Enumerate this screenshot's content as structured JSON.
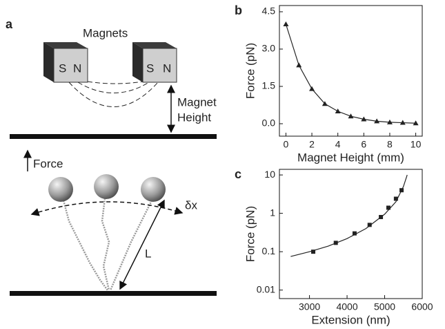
{
  "panel_a": {
    "label": "a",
    "magnets": "Magnets",
    "poles": [
      "S",
      "N",
      "S",
      "N"
    ],
    "magnet_height": [
      "Magnet",
      "Height"
    ],
    "force": "Force",
    "delta_x": "δx",
    "length": "L"
  },
  "chart_data": [
    {
      "type": "line",
      "panel": "b",
      "xlabel": "Magnet Height (mm)",
      "ylabel": "Force (pN)",
      "x": [
        0,
        1,
        2,
        3,
        4,
        5,
        6,
        7,
        8,
        9,
        10
      ],
      "series": [
        {
          "color": "#222222",
          "marker": "triangle",
          "line": true,
          "values": [
            4.0,
            2.35,
            1.4,
            0.8,
            0.5,
            0.3,
            0.18,
            0.1,
            0.06,
            0.04,
            0.02
          ]
        }
      ],
      "xlim": [
        -0.5,
        10.5
      ],
      "xticks": [
        0,
        2,
        4,
        6,
        8,
        10
      ],
      "ylim": [
        -0.5,
        4.75
      ],
      "yticks": [
        {
          "value": 0,
          "label": "0.0"
        },
        1.5,
        {
          "value": 3,
          "label": "3.0"
        },
        4.5
      ]
    },
    {
      "type": "scatter",
      "panel": "c",
      "xlabel": "Extension (nm)",
      "ylabel": "Force (pN)",
      "log_y": true,
      "series": [
        {
          "color": "#222222",
          "marker": "square",
          "line": false,
          "x": [
            3100,
            3700,
            4200,
            4600,
            4900,
            5100,
            5300,
            5450
          ],
          "values": [
            0.1,
            0.17,
            0.3,
            0.5,
            0.8,
            1.4,
            2.4,
            4
          ]
        },
        {
          "color": "#222222",
          "marker": null,
          "line": true,
          "x": [
            2500,
            3000,
            3500,
            4000,
            4500,
            5000,
            5300,
            5500,
            5600
          ],
          "values": [
            0.075,
            0.1,
            0.14,
            0.22,
            0.4,
            0.95,
            2.0,
            5,
            10
          ]
        }
      ],
      "xlim": [
        2200,
        6000
      ],
      "xticks": [
        3000,
        4000,
        5000,
        6000
      ],
      "ylim": [
        0.006,
        14
      ],
      "yticks": [
        0.01,
        0.1,
        1,
        10
      ]
    }
  ]
}
